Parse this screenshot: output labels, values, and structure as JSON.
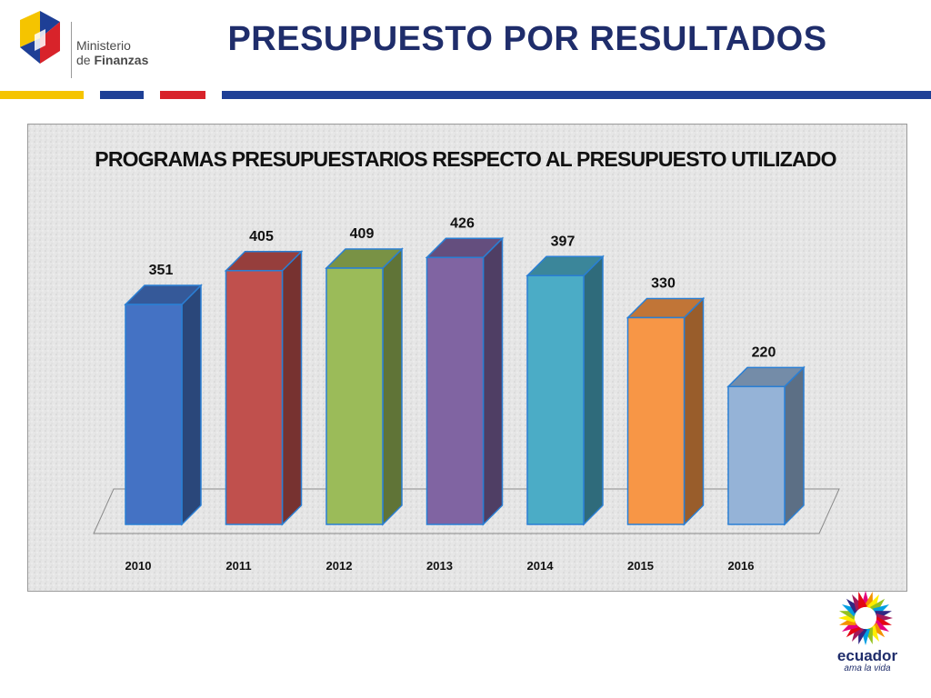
{
  "header": {
    "logo_line1": "Ministerio",
    "logo_line2_prefix": "de ",
    "logo_line2_bold": "Finanzas",
    "title": "PRESUPUESTO POR RESULTADOS"
  },
  "colors": {
    "title": "#1f2d6b",
    "stripe_yellow": "#f5c400",
    "stripe_blue": "#1e3f96",
    "stripe_red": "#d8232a"
  },
  "chart_data": {
    "type": "bar",
    "title": "PROGRAMAS PRESUPUESTARIOS RESPECTO AL PRESUPUESTO UTILIZADO",
    "categories": [
      "2010",
      "2011",
      "2012",
      "2013",
      "2014",
      "2015",
      "2016"
    ],
    "values": [
      351,
      405,
      409,
      426,
      397,
      330,
      220
    ],
    "ylim": [
      0,
      450
    ],
    "grid": false,
    "legend": "none",
    "style": "3d-column",
    "bar_colors": [
      "#4472c4",
      "#c0504d",
      "#9bbb59",
      "#8064a2",
      "#4bacc6",
      "#f79646",
      "#95b3d7"
    ]
  },
  "footer": {
    "logo_word": "ecuador",
    "logo_tagline": "ama la vida"
  }
}
